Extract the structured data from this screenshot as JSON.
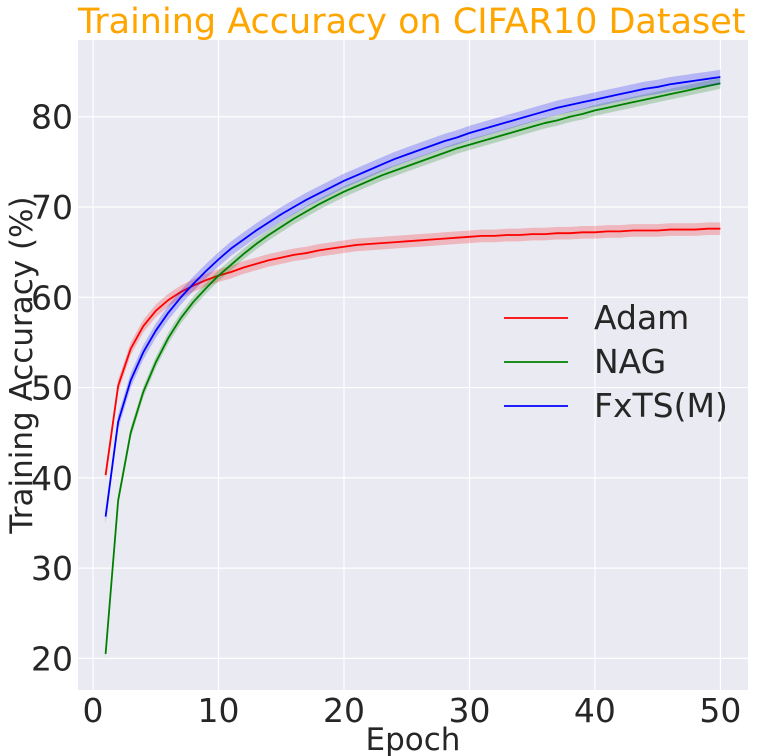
{
  "chart_data": {
    "type": "line",
    "title": "Training Accuracy on CIFAR10 Dataset",
    "title_color": "#FFA500",
    "xlabel": "Epoch",
    "ylabel": "Training Accuracy (%)",
    "xlim": [
      -1.2,
      52.2
    ],
    "ylim": [
      16.5,
      88.5
    ],
    "xticks": [
      0,
      10,
      20,
      30,
      40,
      50
    ],
    "yticks": [
      20,
      30,
      40,
      50,
      60,
      70,
      80
    ],
    "grid": true,
    "background": "#EAEAF2",
    "legend_position": "center-right",
    "x": [
      1,
      2,
      3,
      4,
      5,
      6,
      7,
      8,
      9,
      10,
      11,
      12,
      13,
      14,
      15,
      16,
      17,
      18,
      19,
      20,
      21,
      22,
      23,
      24,
      25,
      26,
      27,
      28,
      29,
      30,
      31,
      32,
      33,
      34,
      35,
      36,
      37,
      38,
      39,
      40,
      41,
      42,
      43,
      44,
      45,
      46,
      47,
      48,
      49,
      50
    ],
    "series": [
      {
        "name": "Adam",
        "color": "#FF0000",
        "band": 0.7,
        "values": [
          40.3,
          50.2,
          54.3,
          56.8,
          58.5,
          59.7,
          60.6,
          61.3,
          61.9,
          62.4,
          62.8,
          63.3,
          63.7,
          64.1,
          64.4,
          64.7,
          64.9,
          65.2,
          65.4,
          65.6,
          65.8,
          65.9,
          66.0,
          66.1,
          66.2,
          66.3,
          66.4,
          66.5,
          66.6,
          66.7,
          66.8,
          66.8,
          66.9,
          66.9,
          67.0,
          67.0,
          67.1,
          67.1,
          67.2,
          67.2,
          67.3,
          67.3,
          67.4,
          67.4,
          67.4,
          67.5,
          67.5,
          67.5,
          67.6,
          67.6
        ]
      },
      {
        "name": "NAG",
        "color": "#008000",
        "band": 0.6,
        "values": [
          20.5,
          37.5,
          45.0,
          49.5,
          52.8,
          55.5,
          57.7,
          59.5,
          61.0,
          62.4,
          63.6,
          64.8,
          65.9,
          66.9,
          67.8,
          68.7,
          69.5,
          70.3,
          71.0,
          71.7,
          72.3,
          72.9,
          73.5,
          74.0,
          74.5,
          75.0,
          75.5,
          76.0,
          76.5,
          76.9,
          77.3,
          77.7,
          78.1,
          78.5,
          78.9,
          79.3,
          79.6,
          80.0,
          80.3,
          80.7,
          81.0,
          81.3,
          81.6,
          81.9,
          82.2,
          82.5,
          82.8,
          83.1,
          83.4,
          83.7
        ]
      },
      {
        "name": "FxTS(M)",
        "color": "#0000FF",
        "band": 0.8,
        "values": [
          35.7,
          46.2,
          50.8,
          53.9,
          56.3,
          58.3,
          60.0,
          61.5,
          62.9,
          64.2,
          65.4,
          66.4,
          67.4,
          68.3,
          69.2,
          70.0,
          70.8,
          71.5,
          72.2,
          72.9,
          73.5,
          74.1,
          74.7,
          75.3,
          75.8,
          76.3,
          76.8,
          77.3,
          77.7,
          78.2,
          78.6,
          79.0,
          79.4,
          79.8,
          80.2,
          80.6,
          81.0,
          81.3,
          81.6,
          81.9,
          82.2,
          82.5,
          82.8,
          83.1,
          83.3,
          83.6,
          83.8,
          84.0,
          84.2,
          84.4
        ]
      }
    ]
  }
}
